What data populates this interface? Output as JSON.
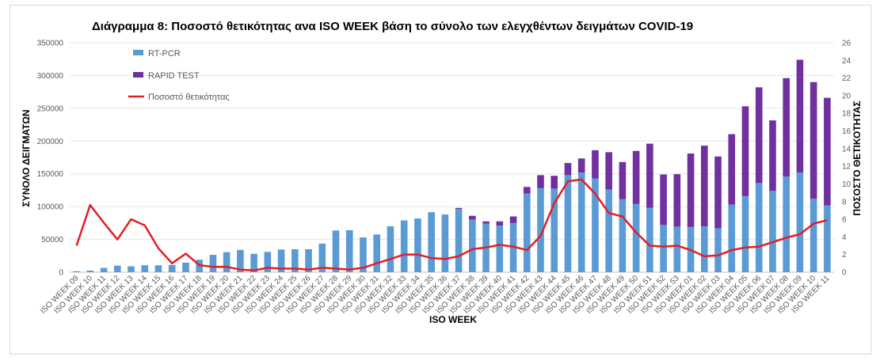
{
  "chart_data": {
    "type": "bar",
    "title": "Διάγραμμα 8: Ποσοστό  θετικότητας ανα ISO WEEK  βάση  το σύνολο των ελεγχθέντων δειγμάτων COVID-19",
    "xlabel": "ISO WEEK",
    "ylabel": "ΣΥΝΟΛΟ ΔΕΙΓΜΑΤΩΝ",
    "y2label": "ΠΟΣΟΣΤΟ ΘΕΤΙΚΟΤΗΤΑΣ",
    "ylim": [
      0,
      350000
    ],
    "y2lim": [
      0,
      26
    ],
    "stacked": true,
    "grid": true,
    "legend_position": "top-left",
    "yticks": [
      "0",
      "50000",
      "100000",
      "150000",
      "200000",
      "250000",
      "300000",
      "350000"
    ],
    "y2ticks": [
      "0",
      "2",
      "4",
      "6",
      "8",
      "10",
      "12",
      "14",
      "16",
      "18",
      "20",
      "22",
      "24",
      "26"
    ],
    "categories": [
      "ISO WEEK 09",
      "ISO WEEK 10",
      "ISO WEEK 11",
      "ISO WEEK 12",
      "ISO WEEK 13",
      "ISO WEEK 14",
      "ISO WEEK 15",
      "ISO WEEK 16",
      "ISO WEEK 17",
      "ISO WEEK 18",
      "ISO WEEK 19",
      "ISO WEEK 20",
      "ISO WEEK 21",
      "ISO WEEK 22",
      "ISO WEEK 23",
      "ISO WEEK 24",
      "ISO WEEK 25",
      "ISO WEEK 26",
      "ISO WEEK 27",
      "ISO WEEK 28",
      "ISO WEEK 29",
      "ISO WEEK 30",
      "ISO WEEK 31",
      "ISO WEEK 32",
      "ISO WEEK 33",
      "ISO WEEK 34",
      "ISO WEEK 35",
      "ISO WEEK 36",
      "ISO WEEK 37",
      "ISO WEEK 38",
      "ISO WEEK 39",
      "ISO WEEK 40",
      "ISO WEEK 41",
      "ISO WEEK 42",
      "ISO WEEK 43",
      "ISO WEEK 44",
      "ISO WEEK 45",
      "ISO WEEK 46",
      "ISO WEEK 47",
      "ISO WEEK 48",
      "ISO WEEK 49",
      "ISO WEEK 50",
      "ISO WEEK 51",
      "ISO WEEK 52",
      "ISO WEEK 53",
      "ISO WEEK 01",
      "ISO WEEK 02",
      "ISO WEEK 03",
      "ISO WEEK 04",
      "ISO WEEK 05",
      "ISO WEEK 06",
      "ISO WEEK 07",
      "ISO WEEK 08",
      "ISO WEEK 09",
      "ISO WEEK 10",
      "ISO WEEK 11"
    ],
    "series": [
      {
        "name": "RT-PCR",
        "type": "bar",
        "color": "#5b9bd5",
        "values": [
          1500,
          2500,
          6500,
          10000,
          9000,
          10500,
          10500,
          11000,
          14500,
          19000,
          26500,
          30500,
          34000,
          28000,
          31000,
          34500,
          35000,
          35000,
          43500,
          63500,
          64000,
          53000,
          57500,
          70000,
          79000,
          82000,
          91500,
          88000,
          96500,
          80000,
          74000,
          71000,
          75000,
          120000,
          128500,
          127500,
          148000,
          152000,
          143000,
          126000,
          111500,
          104000,
          98000,
          72000,
          69500,
          69000,
          70000,
          67000,
          103000,
          116000,
          136000,
          124000,
          146000,
          152000,
          112000,
          102000
        ]
      },
      {
        "name": "RAPID TEST",
        "type": "bar",
        "color": "#7030a0",
        "values": [
          0,
          0,
          0,
          0,
          0,
          0,
          0,
          0,
          0,
          0,
          0,
          0,
          0,
          0,
          0,
          0,
          0,
          0,
          0,
          0,
          0,
          0,
          0,
          0,
          0,
          0,
          0,
          0,
          1500,
          6000,
          3500,
          6500,
          10000,
          10000,
          19500,
          19500,
          18500,
          21500,
          43000,
          57000,
          56500,
          81000,
          98000,
          77000,
          80000,
          112000,
          123000,
          109500,
          107500,
          137000,
          146000,
          107500,
          150000,
          172000,
          178000,
          164000
        ]
      },
      {
        "name": "Ποσοστό θετικότητας",
        "type": "line",
        "axis": "right",
        "color": "#e31e24",
        "values": [
          3.0,
          7.6,
          5.6,
          3.7,
          6.0,
          5.3,
          2.7,
          1.0,
          2.1,
          0.8,
          0.6,
          0.6,
          0.3,
          0.2,
          0.5,
          0.4,
          0.4,
          0.3,
          0.5,
          0.4,
          0.3,
          0.5,
          1.0,
          1.5,
          2.0,
          2.0,
          1.6,
          1.5,
          1.8,
          2.6,
          2.8,
          3.1,
          2.9,
          2.5,
          4.1,
          7.8,
          10.3,
          10.5,
          8.9,
          6.7,
          6.3,
          4.5,
          3.0,
          2.9,
          3.0,
          2.5,
          1.8,
          1.9,
          2.5,
          2.8,
          2.9,
          3.4,
          3.9,
          4.3,
          5.5,
          5.9
        ]
      }
    ]
  }
}
